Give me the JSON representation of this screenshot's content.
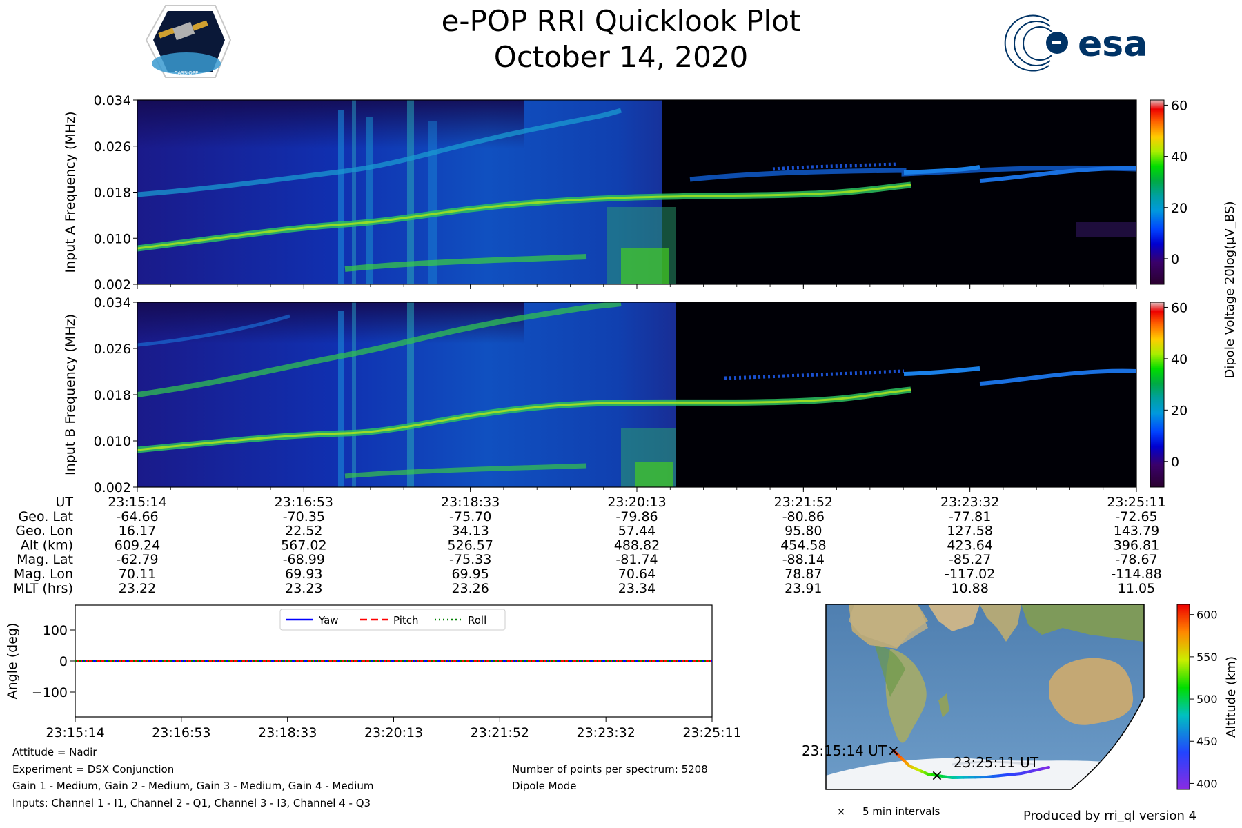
{
  "header": {
    "title": "e-POP RRI Quicklook Plot",
    "date": "October 14, 2020",
    "left_logo": "cassiope-mission-logo",
    "left_logo_text": "CASSIOPE",
    "right_logo": "esa-logo",
    "right_logo_text": "esa"
  },
  "chart_data": [
    {
      "type": "heatmap",
      "id": "input-a-spectrogram",
      "ylabel": "Input A Frequency (MHz)",
      "yticks": [
        "0.034",
        "0.026",
        "0.018",
        "0.010",
        "0.002"
      ],
      "ylim": [
        0.002,
        0.034
      ],
      "colorbar": {
        "label": "Dipole Voltage 20log(μV_BS)",
        "ticks": [
          "60",
          "40",
          "20",
          "0"
        ],
        "range": [
          -10,
          62
        ]
      }
    },
    {
      "type": "heatmap",
      "id": "input-b-spectrogram",
      "ylabel": "Input B Frequency (MHz)",
      "yticks": [
        "0.034",
        "0.026",
        "0.018",
        "0.010",
        "0.002"
      ],
      "ylim": [
        0.002,
        0.034
      ],
      "colorbar": {
        "label": "Dipole Voltage 20log(μV_BS)",
        "ticks": [
          "60",
          "40",
          "20",
          "0"
        ],
        "range": [
          -10,
          62
        ]
      }
    },
    {
      "type": "line",
      "id": "attitude-plot",
      "ylabel": "Angle (deg)",
      "yticks": [
        "100",
        "0",
        "−100"
      ],
      "ylim": [
        -180,
        180
      ],
      "x": [
        "23:15:14",
        "23:16:53",
        "23:18:33",
        "23:20:13",
        "23:21:52",
        "23:23:32",
        "23:25:11"
      ],
      "series": [
        {
          "name": "Yaw",
          "color": "#0000ff",
          "style": "solid",
          "values": [
            0,
            0,
            0,
            0,
            0,
            0,
            0
          ]
        },
        {
          "name": "Pitch",
          "color": "#ff0000",
          "style": "dashed",
          "values": [
            0,
            0,
            0,
            0,
            0,
            0,
            0
          ]
        },
        {
          "name": "Roll",
          "color": "#008000",
          "style": "dotted",
          "values": [
            0,
            0,
            0,
            0,
            0,
            0,
            0
          ]
        }
      ],
      "legend": "top-center"
    },
    {
      "type": "scatter",
      "id": "orbit-map",
      "start_label": "23:15:14 UT",
      "end_label": "23:25:11 UT",
      "marker_legend": "5 min intervals",
      "colorbar": {
        "label": "Altitude (km)",
        "ticks": [
          "600",
          "550",
          "500",
          "450",
          "400"
        ],
        "range": [
          393,
          612
        ]
      }
    }
  ],
  "ephemeris": {
    "row_labels": [
      "UT",
      "Geo. Lat",
      "Geo. Lon",
      "Alt (km)",
      "Mag. Lat",
      "Mag. Lon",
      "MLT (hrs)"
    ],
    "columns": [
      [
        "23:15:14",
        "-64.66",
        "16.17",
        "609.24",
        "-62.79",
        "70.11",
        "23.22"
      ],
      [
        "23:16:53",
        "-70.35",
        "22.52",
        "567.02",
        "-68.99",
        "69.93",
        "23.23"
      ],
      [
        "23:18:33",
        "-75.70",
        "34.13",
        "526.57",
        "-75.33",
        "69.95",
        "23.26"
      ],
      [
        "23:20:13",
        "-79.86",
        "57.44",
        "488.82",
        "-81.74",
        "70.64",
        "23.34"
      ],
      [
        "23:21:52",
        "-80.86",
        "95.80",
        "454.58",
        "-88.14",
        "78.87",
        "23.91"
      ],
      [
        "23:23:32",
        "-77.81",
        "127.58",
        "423.64",
        "-85.27",
        "-117.02",
        "10.88"
      ],
      [
        "23:25:11",
        "-72.65",
        "143.79",
        "396.81",
        "-78.67",
        "-114.88",
        "11.05"
      ]
    ]
  },
  "info": {
    "attitude": "Attitude = Nadir",
    "experiment": "Experiment = DSX Conjunction",
    "gains": "Gain 1 - Medium, Gain 2 - Medium, Gain 3 - Medium, Gain 4 - Medium",
    "inputs": "Inputs: Channel 1 - I1, Channel 2 - Q1, Channel 3 - I3, Channel 4 - Q3",
    "points": "Number of points per spectrum: 5208",
    "mode": "Dipole Mode",
    "produced_by": "Produced by rri_ql version 4"
  }
}
